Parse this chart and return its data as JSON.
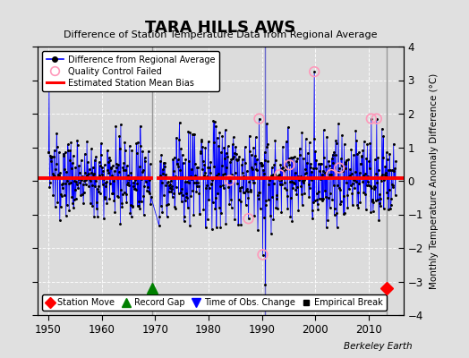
{
  "title": "TARA HILLS AWS",
  "subtitle": "Difference of Station Temperature Data from Regional Average",
  "ylabel": "Monthly Temperature Anomaly Difference (°C)",
  "xlim": [
    1948.0,
    2016.5
  ],
  "ylim": [
    -4,
    4
  ],
  "yticks": [
    -4,
    -3,
    -2,
    -1,
    0,
    1,
    2,
    3,
    4
  ],
  "xticks": [
    1950,
    1960,
    1970,
    1980,
    1990,
    2000,
    2010
  ],
  "background_color": "#e0e0e0",
  "plot_bg_color": "#dcdcdc",
  "mean_bias": 0.08,
  "vertical_lines_gray": [
    1969.5,
    2013.3
  ],
  "vertical_line_blue": 1990.5,
  "station_move_x": [
    2013.3
  ],
  "station_move_y": [
    -3.2
  ],
  "record_gap_x": [
    1969.5
  ],
  "record_gap_y": [
    -3.2
  ],
  "watermark": "Berkeley Earth",
  "seed": 137
}
